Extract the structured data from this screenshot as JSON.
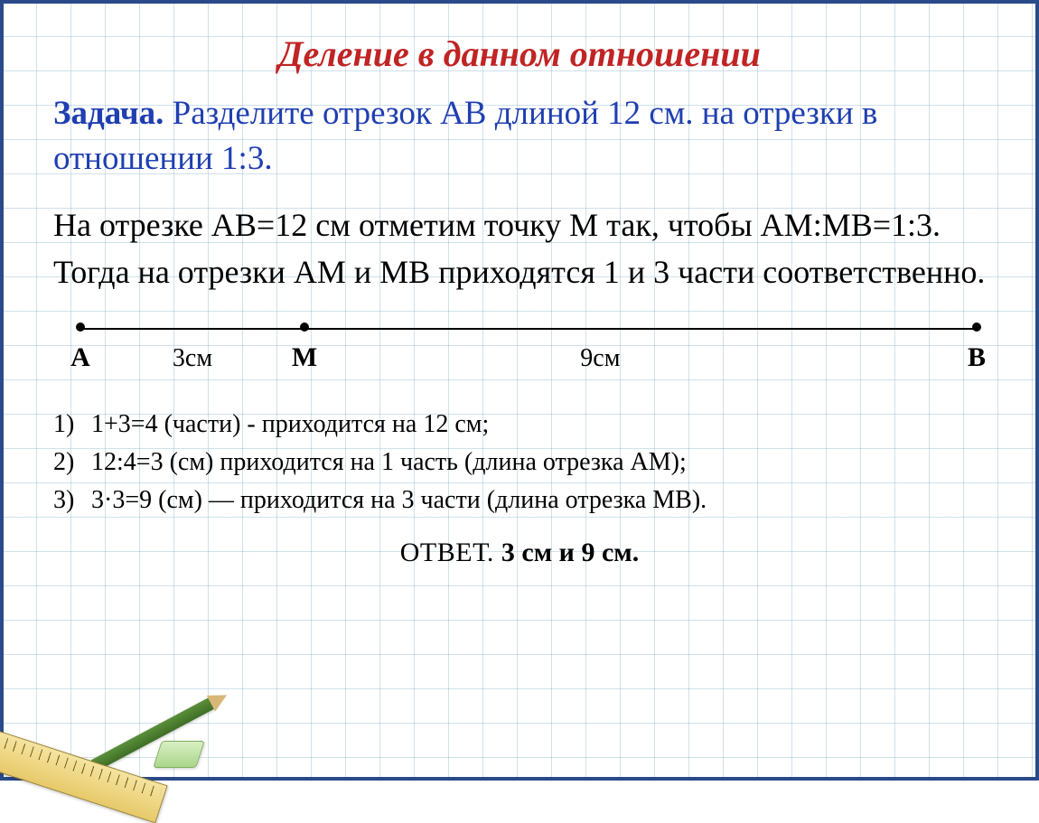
{
  "colors": {
    "title": "#c02424",
    "task": "#1f3fb0",
    "body": "#000000",
    "frame_border": "#2a4a8a",
    "grid": "rgba(120,170,200,0.35)"
  },
  "title": "Деление в данном отношении",
  "task": {
    "label": "Задача.",
    "text": " Разделите отрезок АВ длиной 12 см. на отрезки в отношении 1:3."
  },
  "body": "На отрезке АВ=12 см отметим точку М так, чтобы АМ:МВ=1:3. Тогда на отрезки АМ и МВ приходятся 1 и 3 части соответственно.",
  "diagram": {
    "points": [
      {
        "label": "А",
        "pos_pct": 0
      },
      {
        "label": "М",
        "pos_pct": 25
      },
      {
        "label": "В",
        "pos_pct": 100
      }
    ],
    "seg_labels": [
      {
        "text": "3см",
        "pos_pct": 12.5
      },
      {
        "text": "9см",
        "pos_pct": 58
      }
    ]
  },
  "steps": [
    {
      "n": "1)",
      "t": "1+3=4 (части) -  приходится на 12 см;"
    },
    {
      "n": "2)",
      "t": "12:4=3 (см) приходится на 1 часть (длина отрезка АМ);"
    },
    {
      "n": "3)",
      "t": "3·3=9  (см) — приходится на 3 части (длина отрезка МВ)."
    }
  ],
  "answer": {
    "label": "ОТВЕТ. ",
    "value": "3 см и 9 см."
  }
}
